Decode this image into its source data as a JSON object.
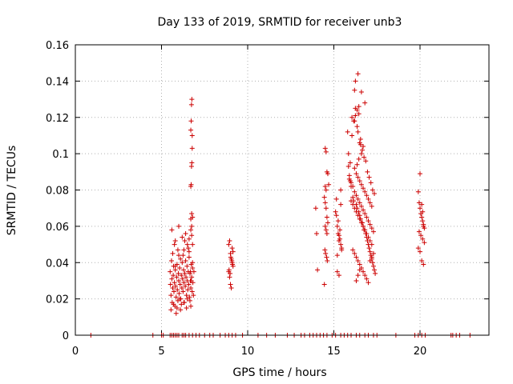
{
  "chart_data": {
    "type": "scatter",
    "title": "Day 133 of 2019, SRMTID for receiver unb3",
    "xlabel": "GPS time / hours",
    "ylabel": "SRMTID / TECUs",
    "xlim": [
      0,
      24
    ],
    "ylim": [
      0,
      0.16
    ],
    "xticks": [
      0,
      5,
      10,
      15,
      20
    ],
    "xtick_labels": [
      "0",
      "5",
      "10",
      "15",
      "20"
    ],
    "yticks": [
      0,
      0.02,
      0.04,
      0.06,
      0.08,
      0.1,
      0.12,
      0.14,
      0.16
    ],
    "ytick_labels": [
      "0",
      "0.02",
      "0.04",
      "0.06",
      "0.08",
      "0.1",
      "0.12",
      "0.14",
      "0.16"
    ],
    "grid": true,
    "marker": "+",
    "series": [
      {
        "name": "SRMTID",
        "color": "#cc0000",
        "x": [
          0.9,
          4.5,
          5.0,
          5.1,
          5.5,
          5.6,
          5.7,
          5.8,
          5.9,
          6.0,
          6.2,
          6.3,
          6.4,
          6.6,
          6.8,
          7.0,
          7.2,
          7.5,
          7.8,
          8.0,
          8.4,
          8.7,
          8.9,
          9.1,
          9.3,
          9.7,
          10.6,
          11.1,
          11.6,
          12.3,
          12.7,
          13.1,
          13.3,
          13.6,
          13.8,
          14.0,
          14.2,
          14.4,
          14.6,
          14.9,
          15.1,
          15.4,
          15.6,
          15.8,
          16.0,
          16.3,
          16.5,
          16.8,
          17.0,
          17.3,
          17.5,
          18.6,
          19.7,
          19.9,
          20.1,
          20.3,
          21.8,
          21.9,
          22.1,
          22.3,
          22.9,
          5.5,
          5.52,
          5.55,
          5.58,
          5.6,
          5.62,
          5.65,
          5.68,
          5.7,
          5.72,
          5.75,
          5.78,
          5.8,
          5.82,
          5.85,
          5.88,
          5.9,
          5.92,
          5.95,
          5.98,
          6.0,
          6.02,
          6.05,
          6.08,
          6.1,
          6.12,
          6.15,
          6.18,
          6.2,
          6.22,
          6.25,
          6.28,
          6.3,
          6.32,
          6.35,
          6.38,
          6.4,
          6.42,
          6.45,
          6.48,
          6.5,
          6.52,
          6.55,
          6.58,
          6.6,
          6.62,
          6.65,
          6.68,
          6.7,
          6.72,
          6.75,
          6.78,
          6.8,
          6.82,
          6.85,
          6.88,
          5.55,
          5.65,
          5.75,
          5.85,
          5.95,
          6.05,
          6.15,
          6.25,
          6.35,
          6.45,
          6.55,
          6.65,
          6.75,
          5.6,
          5.8,
          6.0,
          6.2,
          6.4,
          6.6,
          6.8,
          5.7,
          5.9,
          6.1,
          6.3,
          6.5,
          6.7,
          5.8,
          6.0,
          6.3,
          6.5,
          6.6,
          6.7,
          6.75,
          6.7,
          6.72,
          6.74,
          6.76,
          6.78,
          6.7,
          6.72,
          6.74,
          6.76,
          6.78,
          6.8,
          6.75,
          6.7,
          6.8,
          6.68,
          6.72,
          8.9,
          8.95,
          9.0,
          9.05,
          9.1,
          9.15,
          8.9,
          8.95,
          9.0,
          9.05,
          9.1,
          9.15,
          8.92,
          8.98,
          9.02,
          9.08,
          9.12,
          13.95,
          14.0,
          14.05,
          14.45,
          14.5,
          14.55,
          14.6,
          14.65,
          14.7,
          14.45,
          14.5,
          14.55,
          14.6,
          14.65,
          14.5,
          14.55,
          14.6,
          14.48,
          14.52,
          14.58,
          14.62,
          14.5,
          14.55,
          15.1,
          15.15,
          15.2,
          15.25,
          15.3,
          15.35,
          15.4,
          15.45,
          15.2,
          15.3,
          15.4,
          15.15,
          15.25,
          15.35,
          15.45,
          15.2,
          15.3,
          15.4,
          15.8,
          15.85,
          15.9,
          15.95,
          16.0,
          16.05,
          16.1,
          16.15,
          16.2,
          16.25,
          16.3,
          16.35,
          16.4,
          16.45,
          16.5,
          16.55,
          16.6,
          16.65,
          16.7,
          16.75,
          16.8,
          16.85,
          16.9,
          16.95,
          17.0,
          17.05,
          17.1,
          17.15,
          17.2,
          17.25,
          17.3,
          17.35,
          17.4,
          15.85,
          15.95,
          16.05,
          16.15,
          16.25,
          16.35,
          16.45,
          16.55,
          16.65,
          16.75,
          16.85,
          16.95,
          17.05,
          17.15,
          17.25,
          17.35,
          15.9,
          16.0,
          16.1,
          16.2,
          16.3,
          16.4,
          16.5,
          16.6,
          16.7,
          16.8,
          16.9,
          17.0,
          17.1,
          17.2,
          17.3,
          16.0,
          16.1,
          16.2,
          16.3,
          16.4,
          16.5,
          16.6,
          16.7,
          16.8,
          16.9,
          17.0,
          17.1,
          17.2,
          16.1,
          16.2,
          16.3,
          16.4,
          16.5,
          16.6,
          16.7,
          16.8,
          16.9,
          17.0,
          17.1,
          17.2,
          17.3,
          16.2,
          16.3,
          16.4,
          16.5,
          16.6,
          16.7,
          16.8,
          16.9,
          17.0,
          17.1,
          17.2,
          16.3,
          16.4,
          16.5,
          16.6,
          16.7,
          16.2,
          16.25,
          16.35,
          16.45,
          16.55,
          16.4,
          16.5,
          16.45,
          16.35,
          19.9,
          19.95,
          20.0,
          20.05,
          20.1,
          20.15,
          20.2,
          20.25,
          19.95,
          20.05,
          20.15,
          20.25,
          19.9,
          20.0,
          20.1,
          20.2,
          20.0,
          20.1,
          20.15,
          20.2
        ],
        "y": [
          0,
          0,
          0,
          0,
          0,
          0,
          0,
          0,
          0,
          0,
          0,
          0,
          0,
          0,
          0,
          0,
          0,
          0,
          0,
          0,
          0,
          0,
          0,
          0,
          0,
          0,
          0,
          0,
          0,
          0,
          0,
          0,
          0,
          0,
          0,
          0,
          0,
          0,
          0,
          0,
          0,
          0,
          0,
          0,
          0,
          0,
          0,
          0,
          0,
          0,
          0,
          0,
          0,
          0,
          0,
          0,
          0,
          0,
          0,
          0,
          0,
          0.035,
          0.028,
          0.022,
          0.041,
          0.031,
          0.018,
          0.026,
          0.033,
          0.038,
          0.024,
          0.029,
          0.016,
          0.036,
          0.027,
          0.021,
          0.032,
          0.039,
          0.025,
          0.019,
          0.034,
          0.03,
          0.023,
          0.037,
          0.028,
          0.042,
          0.02,
          0.033,
          0.026,
          0.04,
          0.031,
          0.024,
          0.036,
          0.029,
          0.018,
          0.034,
          0.027,
          0.041,
          0.032,
          0.022,
          0.038,
          0.03,
          0.025,
          0.035,
          0.028,
          0.043,
          0.021,
          0.034,
          0.03,
          0.026,
          0.039,
          0.032,
          0.024,
          0.037,
          0.029,
          0.022,
          0.035,
          0.014,
          0.045,
          0.05,
          0.012,
          0.047,
          0.02,
          0.017,
          0.044,
          0.052,
          0.015,
          0.048,
          0.019,
          0.055,
          0.058,
          0.052,
          0.06,
          0.054,
          0.056,
          0.046,
          0.05,
          0.017,
          0.015,
          0.014,
          0.018,
          0.02,
          0.016,
          0.038,
          0.044,
          0.047,
          0.05,
          0.053,
          0.064,
          0.067,
          0.082,
          0.083,
          0.093,
          0.095,
          0.103,
          0.113,
          0.118,
          0.127,
          0.13,
          0.11,
          0.065,
          0.06,
          0.058,
          0.04,
          0.035,
          0.03,
          0.05,
          0.052,
          0.045,
          0.042,
          0.04,
          0.038,
          0.035,
          0.032,
          0.028,
          0.026,
          0.048,
          0.046,
          0.036,
          0.034,
          0.043,
          0.041,
          0.039,
          0.07,
          0.056,
          0.036,
          0.028,
          0.103,
          0.101,
          0.09,
          0.089,
          0.083,
          0.076,
          0.073,
          0.07,
          0.065,
          0.062,
          0.06,
          0.058,
          0.056,
          0.047,
          0.045,
          0.043,
          0.041,
          0.082,
          0.08,
          0.068,
          0.075,
          0.06,
          0.056,
          0.055,
          0.053,
          0.05,
          0.047,
          0.035,
          0.033,
          0.072,
          0.066,
          0.063,
          0.058,
          0.048,
          0.044,
          0.052,
          0.08,
          0.112,
          0.093,
          0.088,
          0.085,
          0.082,
          0.11,
          0.076,
          0.074,
          0.135,
          0.14,
          0.072,
          0.07,
          0.144,
          0.068,
          0.066,
          0.064,
          0.134,
          0.062,
          0.06,
          0.058,
          0.128,
          0.056,
          0.054,
          0.052,
          0.05,
          0.048,
          0.046,
          0.044,
          0.042,
          0.04,
          0.038,
          0.036,
          0.034,
          0.1,
          0.095,
          0.12,
          0.118,
          0.125,
          0.115,
          0.122,
          0.105,
          0.102,
          0.098,
          0.096,
          0.09,
          0.087,
          0.084,
          0.08,
          0.078,
          0.086,
          0.084,
          0.082,
          0.079,
          0.077,
          0.075,
          0.073,
          0.071,
          0.069,
          0.067,
          0.065,
          0.063,
          0.061,
          0.059,
          0.057,
          0.074,
          0.072,
          0.07,
          0.068,
          0.066,
          0.064,
          0.062,
          0.06,
          0.058,
          0.056,
          0.054,
          0.052,
          0.05,
          0.047,
          0.045,
          0.043,
          0.041,
          0.039,
          0.037,
          0.035,
          0.033,
          0.031,
          0.029,
          0.041,
          0.043,
          0.045,
          0.092,
          0.089,
          0.087,
          0.085,
          0.083,
          0.081,
          0.079,
          0.077,
          0.075,
          0.073,
          0.071,
          0.03,
          0.033,
          0.036,
          0.1,
          0.104,
          0.118,
          0.121,
          0.124,
          0.126,
          0.108,
          0.112,
          0.106,
          0.097,
          0.094,
          0.079,
          0.073,
          0.07,
          0.067,
          0.065,
          0.063,
          0.061,
          0.059,
          0.057,
          0.055,
          0.053,
          0.051,
          0.048,
          0.046,
          0.041,
          0.039,
          0.089,
          0.072,
          0.068,
          0.06
        ]
      }
    ]
  }
}
